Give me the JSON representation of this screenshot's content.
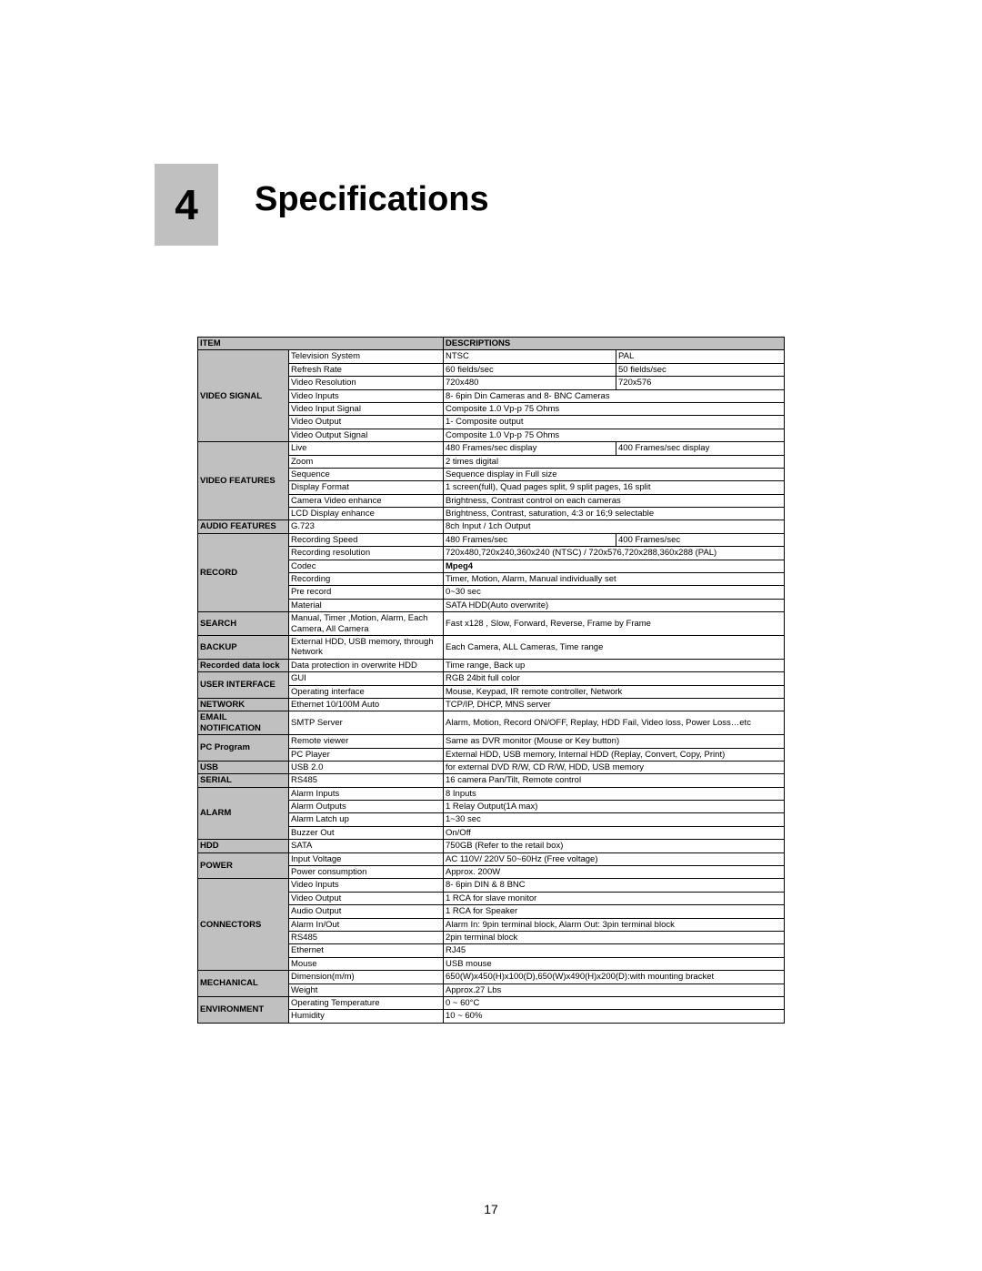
{
  "chapter_number": "4",
  "chapter_title": "Specifications",
  "page_number": "17",
  "headers": {
    "item": "ITEM",
    "desc": "DESCRIPTIONS"
  },
  "groups": [
    {
      "label": "VIDEO SIGNAL",
      "rows": [
        {
          "item": "Television System",
          "d": [
            "NTSC",
            "PAL"
          ]
        },
        {
          "item": "Refresh Rate",
          "d": [
            "60 fields/sec",
            "50 fields/sec"
          ]
        },
        {
          "item": "Video Resolution",
          "d": [
            "720x480",
            "720x576"
          ]
        },
        {
          "item": "Video Inputs",
          "d": [
            "8- 6pin Din Cameras and 8- BNC Cameras"
          ]
        },
        {
          "item": "Video Input Signal",
          "d": [
            "Composite 1.0 Vp-p       75 Ohms"
          ]
        },
        {
          "item": "Video Output",
          "d": [
            "1- Composite output"
          ]
        },
        {
          "item": "Video Output Signal",
          "d": [
            "Composite 1.0 Vp-p       75 Ohms"
          ]
        }
      ]
    },
    {
      "label": "VIDEO FEATURES",
      "rows": [
        {
          "item": "Live",
          "d": [
            "480 Frames/sec display",
            "400 Frames/sec display"
          ]
        },
        {
          "item": "Zoom",
          "d": [
            "2 times digital"
          ]
        },
        {
          "item": "Sequence",
          "d": [
            "Sequence display in Full size"
          ]
        },
        {
          "item": "Display Format",
          "d": [
            "1 screen(full), Quad pages split, 9 split pages, 16 split"
          ]
        },
        {
          "item": "Camera Video enhance",
          "d": [
            "Brightness, Contrast control on each cameras"
          ]
        },
        {
          "item": "LCD Display enhance",
          "d": [
            "Brightness, Contrast, saturation, 4:3 or 16;9 selectable"
          ]
        }
      ]
    },
    {
      "label": "AUDIO FEATURES",
      "rows": [
        {
          "item": "G.723",
          "d": [
            "8ch Input / 1ch Output"
          ]
        }
      ]
    },
    {
      "label": "RECORD",
      "rows": [
        {
          "item": "Recording Speed",
          "d": [
            "480 Frames/sec",
            "400 Frames/sec"
          ]
        },
        {
          "item": "Recording resolution",
          "d": [
            "720x480,720x240,360x240         (NTSC)        / 720x576,720x288,360x288 (PAL)"
          ]
        },
        {
          "item": "Codec",
          "d": [
            "Mpeg4"
          ],
          "bold_d": true
        },
        {
          "item": "Recording",
          "d": [
            "Timer, Motion, Alarm, Manual individually set"
          ]
        },
        {
          "item": "Pre record",
          "d": [
            "0~30 sec"
          ]
        },
        {
          "item": "Material",
          "d": [
            "SATA    HDD(Auto overwrite)"
          ]
        }
      ]
    },
    {
      "label": "SEARCH",
      "rows": [
        {
          "item": "Manual, Timer ,Motion, Alarm, Each Camera, All Camera",
          "d": [
            "Fast x128 , Slow, Forward, Reverse, Frame by Frame"
          ]
        }
      ]
    },
    {
      "label": "BACKUP",
      "rows": [
        {
          "item": "External HDD, USB memory, through Network",
          "d": [
            "Each Camera, ALL Cameras, Time range"
          ]
        }
      ]
    },
    {
      "label": "Recorded data lock",
      "rows": [
        {
          "item": "Data protection in overwrite HDD",
          "d": [
            "Time range, Back up"
          ]
        }
      ]
    },
    {
      "label": "USER INTERFACE",
      "rows": [
        {
          "item": "GUI",
          "d": [
            "RGB 24bit full color"
          ]
        },
        {
          "item": "Operating interface",
          "d": [
            "Mouse, Keypad, IR remote controller, Network"
          ]
        }
      ]
    },
    {
      "label": "NETWORK",
      "rows": [
        {
          "item": "Ethernet 10/100M Auto",
          "d": [
            "TCP/IP, DHCP, MNS server"
          ]
        }
      ]
    },
    {
      "label": "EMAIL NOTIFICATION",
      "rows": [
        {
          "item": "SMTP Server",
          "d": [
            "Alarm, Motion, Record ON/OFF, Replay, HDD Fail, Video loss, Power Loss…etc"
          ]
        }
      ]
    },
    {
      "label": "PC Program",
      "rows": [
        {
          "item": "Remote viewer",
          "d": [
            "Same as DVR monitor (Mouse or Key button)"
          ]
        },
        {
          "item": "PC Player",
          "d": [
            "External HDD, USB memory, Internal HDD (Replay, Convert, Copy, Print)"
          ]
        }
      ]
    },
    {
      "label": "USB",
      "rows": [
        {
          "item": "USB 2.0",
          "d": [
            "for external DVD R/W, CD R/W, HDD, USB memory"
          ]
        }
      ]
    },
    {
      "label": "SERIAL",
      "rows": [
        {
          "item": "RS485",
          "d": [
            "16 camera Pan/Tilt, Remote control"
          ]
        }
      ]
    },
    {
      "label": "ALARM",
      "rows": [
        {
          "item": "Alarm Inputs",
          "d": [
            "8 Inputs"
          ]
        },
        {
          "item": "Alarm Outputs",
          "d": [
            "1 Relay Output(1A max)"
          ]
        },
        {
          "item": "Alarm Latch up",
          "d": [
            "1~30 sec"
          ]
        },
        {
          "item": "Buzzer Out",
          "d": [
            "On/Off"
          ]
        }
      ]
    },
    {
      "label": "HDD",
      "rows": [
        {
          "item": "SATA",
          "d": [
            "750GB (Refer to the retail box)"
          ]
        }
      ]
    },
    {
      "label": "POWER",
      "rows": [
        {
          "item": "Input Voltage",
          "d": [
            "AC 110V/ 220V 50~60Hz (Free voltage)"
          ]
        },
        {
          "item": "Power consumption",
          "d": [
            "Approx. 200W"
          ]
        }
      ]
    },
    {
      "label": "CONNECTORS",
      "rows": [
        {
          "item": "Video Inputs",
          "d": [
            "8- 6pin DIN & 8 BNC"
          ]
        },
        {
          "item": "Video Output",
          "d": [
            "1 RCA for slave monitor"
          ]
        },
        {
          "item": "Audio Output",
          "d": [
            "1 RCA for Speaker"
          ]
        },
        {
          "item": "Alarm In/Out",
          "d": [
            "Alarm In: 9pin terminal block, Alarm Out: 3pin terminal block"
          ]
        },
        {
          "item": "RS485",
          "d": [
            "2pin terminal block"
          ]
        },
        {
          "item": "Ethernet",
          "d": [
            "RJ45"
          ]
        },
        {
          "item": "Mouse",
          "d": [
            "USB mouse"
          ]
        }
      ]
    },
    {
      "label": "MECHANICAL",
      "rows": [
        {
          "item": "Dimension(m/m)",
          "d": [
            "650(W)x450(H)x100(D),650(W)x490(H)x200(D):with mounting bracket"
          ]
        },
        {
          "item": "Weight",
          "d": [
            "Approx.27 Lbs"
          ]
        }
      ]
    },
    {
      "label": "ENVIRONMENT",
      "rows": [
        {
          "item": "Operating Temperature",
          "d": [
            "0 ~ 60°C"
          ]
        },
        {
          "item": "Humidity",
          "d": [
            "10 ~ 60%"
          ]
        }
      ]
    }
  ]
}
